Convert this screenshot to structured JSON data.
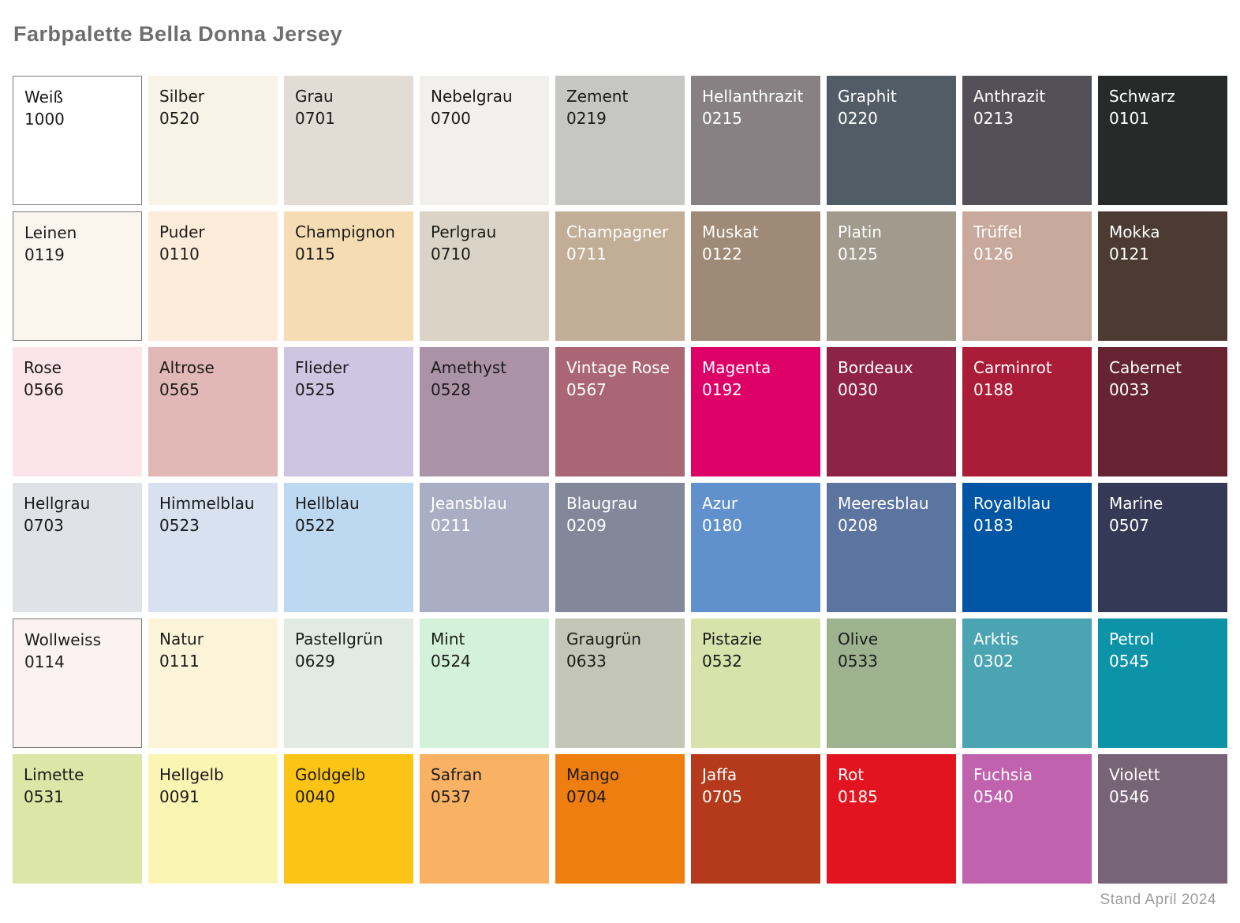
{
  "title": "Farbpalette Bella Donna Jersey",
  "footer": "Stand April 2024",
  "theme": {
    "background": "#ffffff",
    "title_color": "#6e6e6e",
    "footer_color": "#9b9b9b",
    "swatch_border_color": "#7a7a7a",
    "dark_label_color": "#1b1b1b",
    "light_label_color": "#ffffff"
  },
  "grid": {
    "columns": 9,
    "rows": 6
  },
  "swatches": [
    {
      "name": "Weiß",
      "code": "1000",
      "hex": "#ffffff",
      "text": "dark",
      "border": true
    },
    {
      "name": "Silber",
      "code": "0520",
      "hex": "#f7f3e6",
      "text": "dark",
      "border": false
    },
    {
      "name": "Grau",
      "code": "0701",
      "hex": "#e3dcd4",
      "text": "dark",
      "border": false
    },
    {
      "name": "Nebelgrau",
      "code": "0700",
      "hex": "#f1f0ec",
      "text": "dark",
      "border": false
    },
    {
      "name": "Zement",
      "code": "0219",
      "hex": "#c6c6c4",
      "text": "dark",
      "border": false
    },
    {
      "name": "Hellanthrazit",
      "code": "0215",
      "hex": "#878183",
      "text": "light",
      "border": false
    },
    {
      "name": "Graphit",
      "code": "0220",
      "hex": "#525c66",
      "text": "light",
      "border": false
    },
    {
      "name": "Anthrazit",
      "code": "0213",
      "hex": "#545058",
      "text": "light",
      "border": false
    },
    {
      "name": "Schwarz",
      "code": "0101",
      "hex": "#262b29",
      "text": "light",
      "border": false
    },
    {
      "name": "Leinen",
      "code": "0119",
      "hex": "#faf6ed",
      "text": "dark",
      "border": true
    },
    {
      "name": "Puder",
      "code": "0110",
      "hex": "#fcecd9",
      "text": "dark",
      "border": false
    },
    {
      "name": "Champignon",
      "code": "0115",
      "hex": "#f5dcb2",
      "text": "dark",
      "border": false
    },
    {
      "name": "Perlgrau",
      "code": "0710",
      "hex": "#dbd4c6",
      "text": "dark",
      "border": false
    },
    {
      "name": "Champagner",
      "code": "0711",
      "hex": "#c2ad96",
      "text": "light",
      "border": false
    },
    {
      "name": "Muskat",
      "code": "0122",
      "hex": "#9f8977",
      "text": "light",
      "border": false
    },
    {
      "name": "Platin",
      "code": "0125",
      "hex": "#a39a8e",
      "text": "light",
      "border": false
    },
    {
      "name": "Trüffel",
      "code": "0126",
      "hex": "#c9a99b",
      "text": "light",
      "border": false
    },
    {
      "name": "Mokka",
      "code": "0121",
      "hex": "#4c3b33",
      "text": "light",
      "border": false
    },
    {
      "name": "Rose",
      "code": "0566",
      "hex": "#fce4eb",
      "text": "dark",
      "border": false
    },
    {
      "name": "Altrose",
      "code": "0565",
      "hex": "#e2b8b7",
      "text": "dark",
      "border": false
    },
    {
      "name": "Flieder",
      "code": "0525",
      "hex": "#cdc5e1",
      "text": "dark",
      "border": false
    },
    {
      "name": "Amethyst",
      "code": "0528",
      "hex": "#ab93a7",
      "text": "dark",
      "border": false
    },
    {
      "name": "Vintage Rose",
      "code": "0567",
      "hex": "#ab6675",
      "text": "light",
      "border": false
    },
    {
      "name": "Magenta",
      "code": "0192",
      "hex": "#dd0067",
      "text": "light",
      "border": false
    },
    {
      "name": "Bordeaux",
      "code": "0030",
      "hex": "#8e2247",
      "text": "light",
      "border": false
    },
    {
      "name": "Carminrot",
      "code": "0188",
      "hex": "#ab1c38",
      "text": "light",
      "border": false
    },
    {
      "name": "Cabernet",
      "code": "0033",
      "hex": "#662432",
      "text": "light",
      "border": false
    },
    {
      "name": "Hellgrau",
      "code": "0703",
      "hex": "#dfe2e6",
      "text": "dark",
      "border": false
    },
    {
      "name": "Himmelblau",
      "code": "0523",
      "hex": "#d8e1f0",
      "text": "dark",
      "border": false
    },
    {
      "name": "Hellblau",
      "code": "0522",
      "hex": "#bdd9f1",
      "text": "dark",
      "border": false
    },
    {
      "name": "Jeansblau",
      "code": "0211",
      "hex": "#a9aec4",
      "text": "light",
      "border": false
    },
    {
      "name": "Blaugrau",
      "code": "0209",
      "hex": "#82879a",
      "text": "light",
      "border": false
    },
    {
      "name": "Azur",
      "code": "0180",
      "hex": "#6191cc",
      "text": "light",
      "border": false
    },
    {
      "name": "Meeresblau",
      "code": "0208",
      "hex": "#5c74a0",
      "text": "light",
      "border": false
    },
    {
      "name": "Royalblau",
      "code": "0183",
      "hex": "#0056a4",
      "text": "light",
      "border": false
    },
    {
      "name": "Marine",
      "code": "0507",
      "hex": "#343a55",
      "text": "light",
      "border": false
    },
    {
      "name": "Wollweiss",
      "code": "0114",
      "hex": "#fbf2f1",
      "text": "dark",
      "border": true
    },
    {
      "name": "Natur",
      "code": "0111",
      "hex": "#fbf4d8",
      "text": "dark",
      "border": false
    },
    {
      "name": "Pastellgrün",
      "code": "0629",
      "hex": "#e2ebe3",
      "text": "dark",
      "border": false
    },
    {
      "name": "Mint",
      "code": "0524",
      "hex": "#d4f2d9",
      "text": "dark",
      "border": false
    },
    {
      "name": "Graugrün",
      "code": "0633",
      "hex": "#c3c5b6",
      "text": "dark",
      "border": false
    },
    {
      "name": "Pistazie",
      "code": "0532",
      "hex": "#d8e2ab",
      "text": "dark",
      "border": false
    },
    {
      "name": "Olive",
      "code": "0533",
      "hex": "#9db28e",
      "text": "dark",
      "border": false
    },
    {
      "name": "Arktis",
      "code": "0302",
      "hex": "#4ba4b2",
      "text": "light",
      "border": false
    },
    {
      "name": "Petrol",
      "code": "0545",
      "hex": "#0d93a8",
      "text": "light",
      "border": false
    },
    {
      "name": "Limette",
      "code": "0531",
      "hex": "#dce6a6",
      "text": "dark",
      "border": false
    },
    {
      "name": "Hellgelb",
      "code": "0091",
      "hex": "#fbf5b3",
      "text": "dark",
      "border": false
    },
    {
      "name": "Goldgelb",
      "code": "0040",
      "hex": "#fcc415",
      "text": "dark",
      "border": false
    },
    {
      "name": "Safran",
      "code": "0537",
      "hex": "#f9b263",
      "text": "dark",
      "border": false
    },
    {
      "name": "Mango",
      "code": "0704",
      "hex": "#ee7e10",
      "text": "dark",
      "border": false
    },
    {
      "name": "Jaffa",
      "code": "0705",
      "hex": "#b43a1b",
      "text": "light",
      "border": false
    },
    {
      "name": "Rot",
      "code": "0185",
      "hex": "#e31420",
      "text": "light",
      "border": false
    },
    {
      "name": "Fuchsia",
      "code": "0540",
      "hex": "#c062ae",
      "text": "light",
      "border": false
    },
    {
      "name": "Violett",
      "code": "0546",
      "hex": "#776476",
      "text": "light",
      "border": false
    }
  ]
}
